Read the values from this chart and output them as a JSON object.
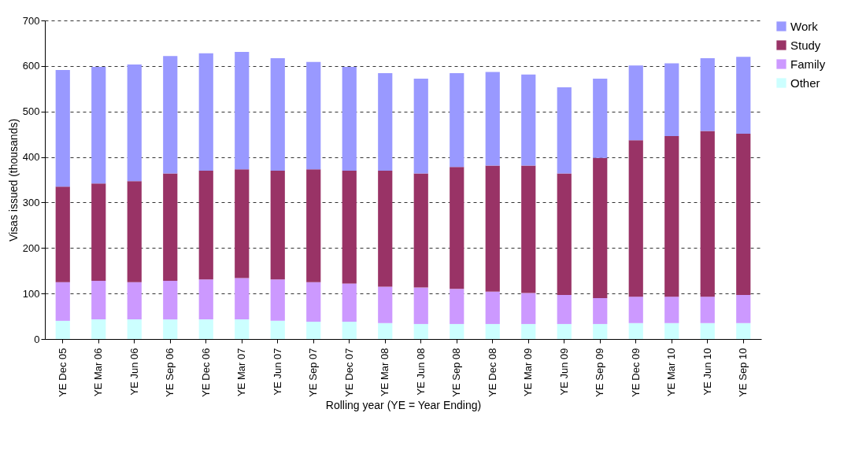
{
  "chart_data": {
    "type": "bar",
    "stacked": true,
    "xlabel": "Rolling year (YE = Year Ending)",
    "ylabel": "Visas issued (thousands)",
    "categories": [
      "YE Dec 05",
      "YE Mar 06",
      "YE Jun 06",
      "YE Sep 06",
      "YE Dec 06",
      "YE Mar 07",
      "YE Jun 07",
      "YE Sep 07",
      "YE Dec 07",
      "YE Mar 08",
      "YE Jun 08",
      "YE Sep 08",
      "YE Dec 08",
      "YE Mar 09",
      "YE Jun 09",
      "YE Sep 09",
      "YE Dec 09",
      "YE Mar 10",
      "YE Jun 10",
      "YE Sep 10"
    ],
    "series": [
      {
        "name": "Other",
        "color": "#ccffff",
        "values": [
          40,
          43,
          43,
          43,
          43,
          43,
          40,
          38,
          38,
          35,
          33,
          33,
          33,
          33,
          33,
          33,
          35,
          35,
          35,
          35
        ]
      },
      {
        "name": "Family",
        "color": "#cc99ff",
        "values": [
          85,
          85,
          82,
          85,
          88,
          91,
          91,
          87,
          84,
          80,
          80,
          77,
          71,
          68,
          64,
          57,
          58,
          58,
          58,
          62
        ]
      },
      {
        "name": "Study",
        "color": "#993366",
        "values": [
          210,
          214,
          222,
          236,
          239,
          239,
          239,
          248,
          248,
          255,
          251,
          268,
          277,
          280,
          267,
          308,
          344,
          353,
          364,
          354
        ]
      },
      {
        "name": "Work",
        "color": "#9999ff",
        "values": [
          256,
          256,
          256,
          258,
          258,
          258,
          247,
          236,
          228,
          214,
          208,
          206,
          206,
          200,
          189,
          174,
          164,
          160,
          160,
          169
        ]
      }
    ],
    "ylim": [
      0,
      700
    ],
    "yticks": [
      0,
      100,
      200,
      300,
      400,
      500,
      600,
      700
    ],
    "grid": "y",
    "legend": "right"
  }
}
